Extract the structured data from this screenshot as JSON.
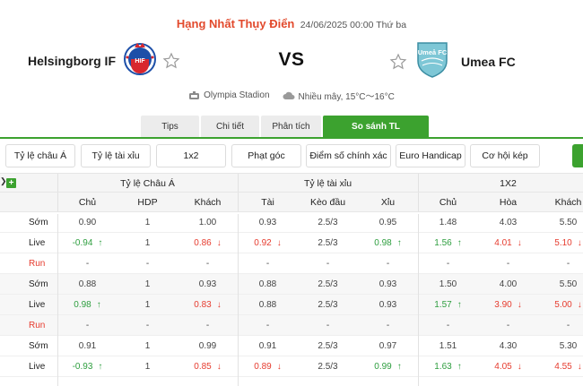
{
  "match": {
    "league": "Hạng Nhất Thụy Điển",
    "time": "24/06/2025 00:00 Thứ ba",
    "home": "Helsingborg IF",
    "away": "Umea FC",
    "vs": "VS",
    "venue": "Olympia Stadion",
    "weather": "Nhiều mây, 15°C～16°C",
    "home_logo_text": "HIF",
    "away_logo_text": "Umeå FC"
  },
  "tabs": [
    "Tips",
    "Chi tiết",
    "Phân tích",
    "So sánh TL"
  ],
  "filters": [
    "Tỷ lệ châu Á",
    "Tỷ lệ tài xỉu",
    "1x2",
    "Phạt góc",
    "Điểm số chính xác",
    "Euro Handicap",
    "Cơ hội kép"
  ],
  "table": {
    "groups": [
      "Tỷ lệ Châu Á",
      "Tỷ lệ tài xỉu",
      "1X2"
    ],
    "columns": [
      "Chủ",
      "HDP",
      "Khách",
      "Tài",
      "Kèo đầu",
      "Xỉu",
      "Chủ",
      "Hòa",
      "Khách"
    ],
    "rows": [
      {
        "label": "Sớm",
        "vals": [
          "0.90",
          "1",
          "1.00",
          "0.93",
          "2.5/3",
          "0.95",
          "1.48",
          "4.03",
          "5.50"
        ],
        "dirs": [
          "",
          "",
          "",
          "",
          "",
          "",
          "",
          "",
          ""
        ]
      },
      {
        "label": "Live",
        "vals": [
          "-0.94",
          "1",
          "0.86",
          "0.92",
          "2.5/3",
          "0.98",
          "1.56",
          "4.01",
          "5.10"
        ],
        "dirs": [
          "up",
          "",
          "down",
          "down",
          "",
          "up",
          "up",
          "down",
          "down"
        ]
      },
      {
        "label": "Run",
        "vals": [
          "-",
          "-",
          "-",
          "-",
          "-",
          "-",
          "-",
          "-",
          "-"
        ],
        "dirs": [
          "",
          "",
          "",
          "",
          "",
          "",
          "",
          "",
          ""
        ]
      },
      {
        "label": "Sớm",
        "vals": [
          "0.88",
          "1",
          "0.93",
          "0.88",
          "2.5/3",
          "0.93",
          "1.50",
          "4.00",
          "5.50"
        ],
        "dirs": [
          "",
          "",
          "",
          "",
          "",
          "",
          "",
          "",
          ""
        ]
      },
      {
        "label": "Live",
        "vals": [
          "0.98",
          "1",
          "0.83",
          "0.88",
          "2.5/3",
          "0.93",
          "1.57",
          "3.90",
          "5.00"
        ],
        "dirs": [
          "up",
          "",
          "down",
          "",
          "",
          "",
          "up",
          "down",
          "down"
        ]
      },
      {
        "label": "Run",
        "vals": [
          "-",
          "-",
          "-",
          "-",
          "-",
          "-",
          "-",
          "-",
          "-"
        ],
        "dirs": [
          "",
          "",
          "",
          "",
          "",
          "",
          "",
          "",
          ""
        ]
      },
      {
        "label": "Sớm",
        "vals": [
          "0.91",
          "1",
          "0.99",
          "0.91",
          "2.5/3",
          "0.97",
          "1.51",
          "4.30",
          "5.30"
        ],
        "dirs": [
          "",
          "",
          "",
          "",
          "",
          "",
          "",
          "",
          ""
        ]
      },
      {
        "label": "Live",
        "vals": [
          "-0.93",
          "1",
          "0.85",
          "0.89",
          "2.5/3",
          "0.99",
          "1.63",
          "4.05",
          "4.55"
        ],
        "dirs": [
          "up",
          "",
          "down",
          "down",
          "",
          "up",
          "up",
          "down",
          "down"
        ]
      }
    ]
  },
  "colors": {
    "accent": "#3ca22f",
    "league": "#e24a2d",
    "up": "#2e9e3f",
    "down": "#e63b2e"
  }
}
